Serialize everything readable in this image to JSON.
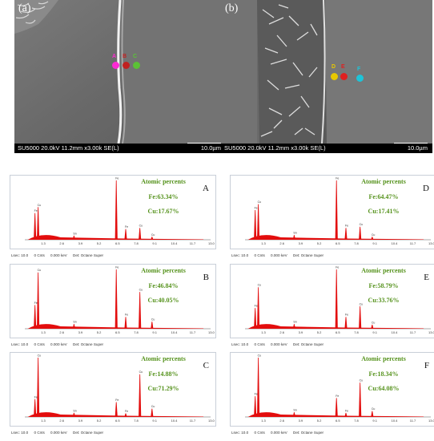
{
  "micrographs": [
    {
      "letter": "(a)",
      "info": "SU5000 20.0kV 11.2mm x3.00k SE(L)",
      "scale": "10.0µm",
      "markers": [
        {
          "label": "A",
          "color": "#ff2ad4"
        },
        {
          "label": "B",
          "color": "#c02020"
        },
        {
          "label": "C",
          "color": "#5bc236"
        }
      ]
    },
    {
      "letter": "(b)",
      "info": "SU5000 20.0kV 11.2mm x3.00k SE(L)",
      "scale": "10.0µm",
      "markers": [
        {
          "label": "D",
          "color": "#e8c800"
        },
        {
          "label": "E",
          "color": "#e02020"
        },
        {
          "label": "F",
          "color": "#1ec4d8"
        }
      ]
    }
  ],
  "spectra": [
    {
      "letter": "A",
      "title": "Atomic percents",
      "fe": "Fe:63.34%",
      "cu": "Cu:17.67%"
    },
    {
      "letter": "D",
      "title": "Atomic percents",
      "fe": "Fe:64.47%",
      "cu": "Cu:17.41%"
    },
    {
      "letter": "B",
      "title": "Atomic percents",
      "fe": "Fe:46.84%",
      "cu": "Cu:40.05%"
    },
    {
      "letter": "E",
      "title": "Atomic percents",
      "fe": "Fe:58.79%",
      "cu": "Cu:33.76%"
    },
    {
      "letter": "C",
      "title": "Atomic percents",
      "fe": "Fe:14.88%",
      "cu": "Cu:71.29%"
    },
    {
      "letter": "F",
      "title": "Atomic percents",
      "fe": "Fe:18.34%",
      "cu": "Cu:64.08%"
    }
  ],
  "status_bar": {
    "lsec": "Lsec: 10.0",
    "cnts": "0 Cnts",
    "kev": "0.000 keV",
    "det": "Det: Octane Super"
  },
  "chart_data": [
    {
      "type": "area",
      "id": "A",
      "x_ticks": [
        "1.3",
        "2.6",
        "3.9",
        "5.2",
        "6.5",
        "7.8",
        "9.1",
        "10.4",
        "11.7",
        "13.0"
      ],
      "xlim": [
        0,
        13
      ],
      "peak_labels": [
        "Fe",
        "Cu",
        "Sn",
        "Pb",
        "Zn",
        "P"
      ],
      "peaks": [
        {
          "el": "Cu",
          "x": 0.93,
          "y": 0.55
        },
        {
          "el": "Fe",
          "x": 0.71,
          "y": 0.45
        },
        {
          "el": "Sn",
          "x": 3.44,
          "y": 0.07
        },
        {
          "el": "Fe",
          "x": 6.4,
          "y": 1.0
        },
        {
          "el": "Fe",
          "x": 7.06,
          "y": 0.18
        },
        {
          "el": "Cu",
          "x": 8.05,
          "y": 0.2
        },
        {
          "el": "Cu",
          "x": 8.9,
          "y": 0.05
        }
      ]
    },
    {
      "type": "area",
      "id": "D",
      "x_ticks": [
        "1.3",
        "2.6",
        "3.9",
        "5.2",
        "6.5",
        "7.8",
        "9.1",
        "10.4",
        "11.7",
        "13.0"
      ],
      "xlim": [
        0,
        13
      ],
      "peak_labels": [
        "Fe",
        "Cu",
        "Sn",
        "Pb",
        "Zn",
        "P"
      ],
      "peaks": [
        {
          "el": "Cu",
          "x": 0.93,
          "y": 0.6
        },
        {
          "el": "Fe",
          "x": 0.71,
          "y": 0.5
        },
        {
          "el": "Sn",
          "x": 3.44,
          "y": 0.08
        },
        {
          "el": "Fe",
          "x": 6.4,
          "y": 1.0
        },
        {
          "el": "Fe",
          "x": 7.06,
          "y": 0.2
        },
        {
          "el": "Cu",
          "x": 8.05,
          "y": 0.22
        },
        {
          "el": "Cu",
          "x": 8.9,
          "y": 0.05
        }
      ]
    },
    {
      "type": "area",
      "id": "B",
      "x_ticks": [
        "1.3",
        "2.6",
        "3.9",
        "5.2",
        "6.5",
        "7.8",
        "9.1",
        "10.4",
        "11.7",
        "13.0"
      ],
      "xlim": [
        0,
        13
      ],
      "peak_labels": [
        "Fe",
        "Cu",
        "Sn",
        "Pb",
        "Zn",
        "P"
      ],
      "peaks": [
        {
          "el": "Cu",
          "x": 0.93,
          "y": 0.95
        },
        {
          "el": "Fe",
          "x": 0.71,
          "y": 0.4
        },
        {
          "el": "Sn",
          "x": 3.44,
          "y": 0.08
        },
        {
          "el": "Fe",
          "x": 6.4,
          "y": 1.0
        },
        {
          "el": "Fe",
          "x": 7.06,
          "y": 0.2
        },
        {
          "el": "Cu",
          "x": 8.05,
          "y": 0.62
        },
        {
          "el": "Cu",
          "x": 8.9,
          "y": 0.12
        }
      ]
    },
    {
      "type": "area",
      "id": "E",
      "x_ticks": [
        "1.3",
        "2.6",
        "3.9",
        "5.2",
        "6.5",
        "7.8",
        "9.1",
        "10.4",
        "11.7",
        "13.0"
      ],
      "xlim": [
        0,
        13
      ],
      "peak_labels": [
        "Fe",
        "Cu",
        "Sn",
        "Pb",
        "Zn",
        "P"
      ],
      "peaks": [
        {
          "el": "Cu",
          "x": 0.93,
          "y": 0.7
        },
        {
          "el": "Fe",
          "x": 0.71,
          "y": 0.35
        },
        {
          "el": "Sn",
          "x": 3.44,
          "y": 0.08
        },
        {
          "el": "Fe",
          "x": 6.4,
          "y": 1.0
        },
        {
          "el": "Fe",
          "x": 7.06,
          "y": 0.2
        },
        {
          "el": "Cu",
          "x": 8.05,
          "y": 0.38
        },
        {
          "el": "Cu",
          "x": 8.9,
          "y": 0.07
        }
      ]
    },
    {
      "type": "area",
      "id": "C",
      "x_ticks": [
        "1.3",
        "2.6",
        "3.9",
        "5.2",
        "6.5",
        "7.8",
        "9.1",
        "10.4",
        "11.7",
        "13.0"
      ],
      "xlim": [
        0,
        13
      ],
      "peak_labels": [
        "Fe",
        "Cu",
        "Sn",
        "Pb",
        "Zn",
        "P"
      ],
      "peaks": [
        {
          "el": "Cu",
          "x": 0.93,
          "y": 1.0
        },
        {
          "el": "Fe",
          "x": 0.71,
          "y": 0.3
        },
        {
          "el": "Sn",
          "x": 3.44,
          "y": 0.07
        },
        {
          "el": "Fe",
          "x": 6.4,
          "y": 0.25
        },
        {
          "el": "Fe",
          "x": 7.06,
          "y": 0.06
        },
        {
          "el": "Cu",
          "x": 8.05,
          "y": 0.72
        },
        {
          "el": "Cu",
          "x": 8.9,
          "y": 0.14
        }
      ]
    },
    {
      "type": "area",
      "id": "F",
      "x_ticks": [
        "1.3",
        "2.6",
        "3.9",
        "5.2",
        "6.5",
        "7.8",
        "9.1",
        "10.4",
        "11.7",
        "13.0"
      ],
      "xlim": [
        0,
        13
      ],
      "peak_labels": [
        "Fe",
        "Cu",
        "Sn",
        "Pb",
        "Zn",
        "P"
      ],
      "peaks": [
        {
          "el": "Cu",
          "x": 0.93,
          "y": 1.0
        },
        {
          "el": "Fe",
          "x": 0.71,
          "y": 0.35
        },
        {
          "el": "Sn",
          "x": 3.44,
          "y": 0.08
        },
        {
          "el": "Fe",
          "x": 6.4,
          "y": 0.32
        },
        {
          "el": "Fe",
          "x": 7.06,
          "y": 0.07
        },
        {
          "el": "Cu",
          "x": 8.05,
          "y": 0.58
        },
        {
          "el": "Cu",
          "x": 8.9,
          "y": 0.1
        }
      ]
    }
  ]
}
